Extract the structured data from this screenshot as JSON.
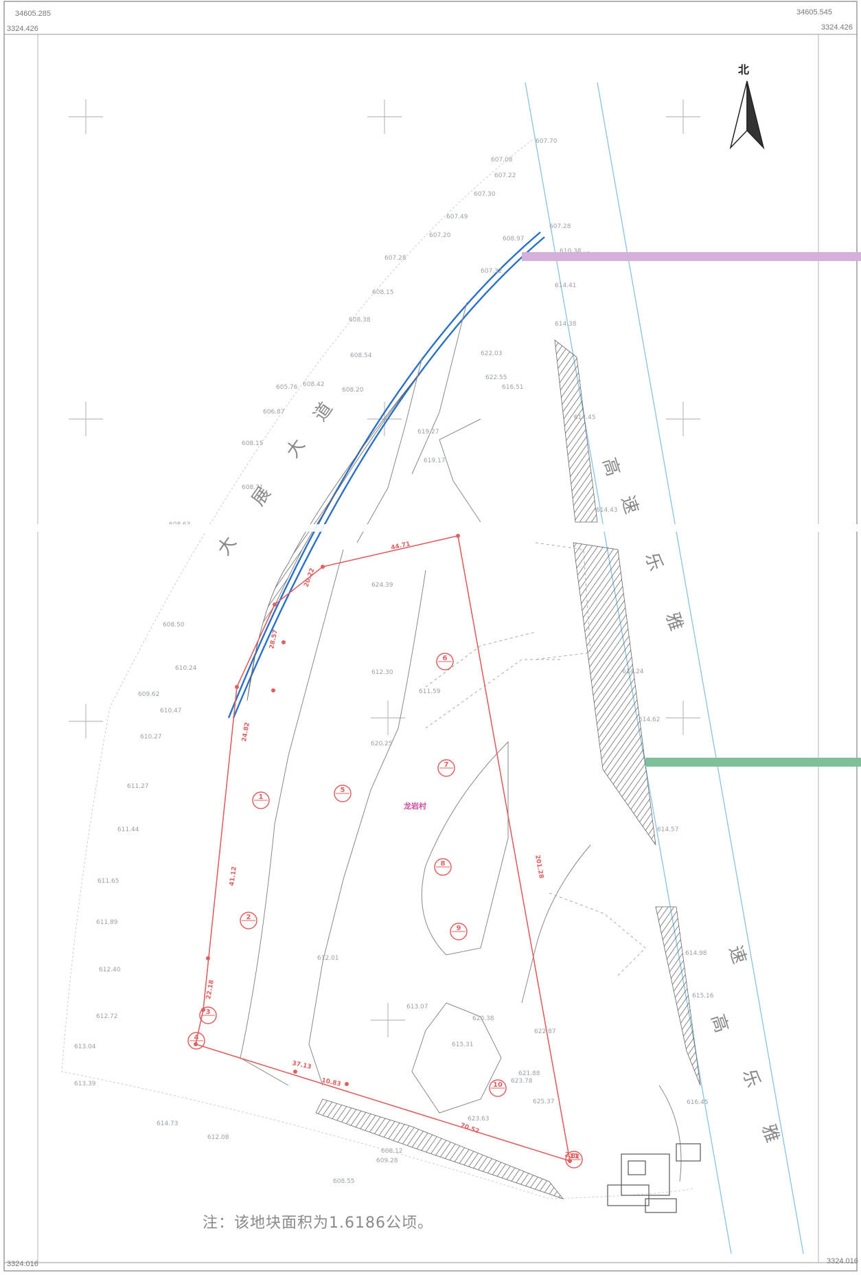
{
  "corners": {
    "top_left_x": "34605.285",
    "top_left_y": "3324.426",
    "top_right_x": "34605.545",
    "top_right_y": "3324.426",
    "bottom_left_y": "3324.016",
    "bottom_right_y": "3324.016"
  },
  "north_label": "北",
  "road_label": [
    "大",
    "展",
    "大",
    "道"
  ],
  "highway_label_upper": [
    "高",
    "速",
    "乐",
    "雅"
  ],
  "highway_label_lower": [
    "高",
    "速",
    "乐",
    "雅"
  ],
  "village_label": "龙岩村",
  "note": "注：该地块面积为1.6186公顷。",
  "parcels": [
    "1",
    "2",
    "3",
    "4",
    "5",
    "6",
    "7",
    "8",
    "9",
    "10",
    "11"
  ],
  "segment_lengths": [
    "44.71",
    "20.22",
    "28.57",
    "24.82",
    "41.12",
    "37.13",
    "70.52",
    "10.83",
    "201.28",
    "22.18",
    "2.81"
  ],
  "colors": {
    "boundary": "#e06060",
    "road": "#2a70c8",
    "highway": "#8fc6e8",
    "hatch": "#555555",
    "grid": "#c8c8c8",
    "elevation": "#9aa0a6",
    "band_purple": "#c9a4d0",
    "band_green": "#7fbf9a"
  },
  "elevations": [
    "607.70",
    "607.08",
    "607.22",
    "607.30",
    "607.49",
    "607.20",
    "607.28",
    "608.97",
    "607.28",
    "607.32",
    "608.15",
    "608.38",
    "608.54",
    "608.42",
    "608.20",
    "605.76",
    "606.87",
    "608.15",
    "608.71",
    "608.63",
    "608.50",
    "610.24",
    "609.62",
    "610.47",
    "610.27",
    "611.27",
    "611.44",
    "611.65",
    "611.89",
    "612.40",
    "612.72",
    "613.04",
    "613.39",
    "614.73",
    "612.08",
    "609.28",
    "608.12",
    "608.55",
    "610.38",
    "607.07",
    "614.41",
    "614.38",
    "614.45",
    "614.43",
    "614.24",
    "614.62",
    "614.57",
    "614.98",
    "615.16",
    "616.45",
    "622.03",
    "622.55",
    "616.51",
    "619.17",
    "619.27",
    "620.25",
    "624.39",
    "611.59",
    "612.30",
    "612.01",
    "613.07",
    "615.31",
    "620.38",
    "623.78",
    "625.37",
    "622.87",
    "621.88",
    "623.63"
  ]
}
